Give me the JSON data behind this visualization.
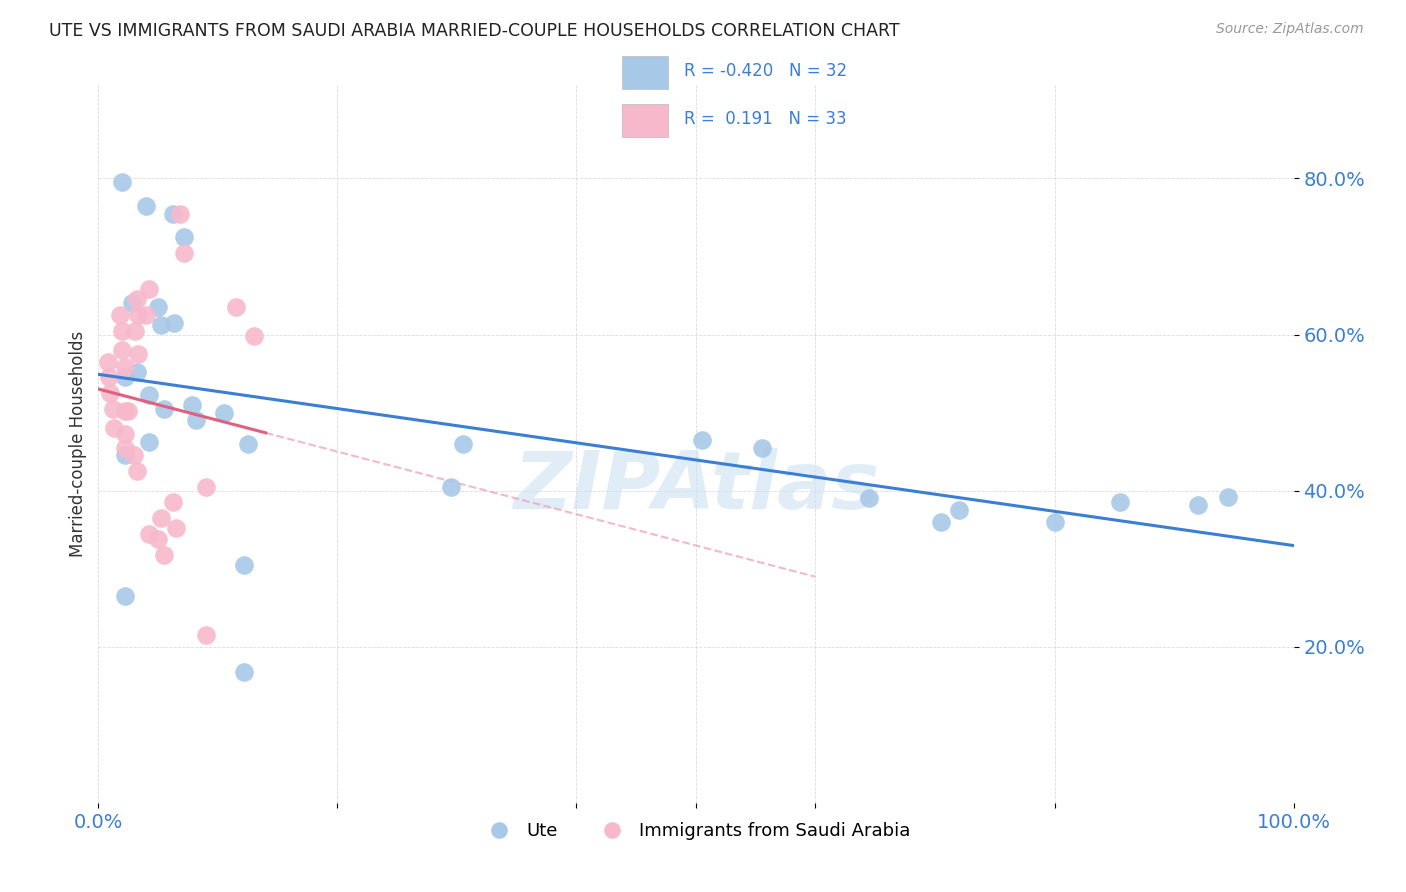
{
  "title": "UTE VS IMMIGRANTS FROM SAUDI ARABIA MARRIED-COUPLE HOUSEHOLDS CORRELATION CHART",
  "source": "Source: ZipAtlas.com",
  "ylabel": "Married-couple Households",
  "legend_R_blue": "-0.420",
  "legend_N_blue": "32",
  "legend_R_pink": " 0.191",
  "legend_N_pink": "33",
  "blue_scatter_color": "#a8c8e8",
  "pink_scatter_color": "#f8b8cc",
  "blue_line_color": "#3a7fd5",
  "pink_line_color": "#e06080",
  "pink_dash_color": "#f0a0b8",
  "watermark_color": "#c8dff0",
  "grid_color": "#d8d8d8",
  "tick_color": "#3a7fd5",
  "xlim": [
    0.0,
    1.0
  ],
  "ylim": [
    0.0,
    0.92
  ],
  "yticks": [
    0.2,
    0.4,
    0.6,
    0.8
  ],
  "ytick_labels": [
    "20.0%",
    "40.0%",
    "60.0%",
    "80.0%"
  ],
  "ute_x": [
    0.02,
    0.04,
    0.062,
    0.072,
    0.028,
    0.05,
    0.052,
    0.063,
    0.022,
    0.032,
    0.042,
    0.055,
    0.078,
    0.082,
    0.022,
    0.042,
    0.105,
    0.125,
    0.305,
    0.295,
    0.505,
    0.555,
    0.645,
    0.705,
    0.72,
    0.8,
    0.855,
    0.92,
    0.945,
    0.122,
    0.022,
    0.122
  ],
  "ute_y": [
    0.795,
    0.765,
    0.755,
    0.725,
    0.64,
    0.635,
    0.612,
    0.615,
    0.545,
    0.552,
    0.522,
    0.505,
    0.51,
    0.49,
    0.445,
    0.462,
    0.5,
    0.46,
    0.46,
    0.405,
    0.465,
    0.455,
    0.39,
    0.36,
    0.375,
    0.36,
    0.385,
    0.382,
    0.392,
    0.168,
    0.265,
    0.305
  ],
  "saudi_x": [
    0.008,
    0.009,
    0.01,
    0.012,
    0.013,
    0.018,
    0.02,
    0.02,
    0.022,
    0.022,
    0.025,
    0.022,
    0.022,
    0.032,
    0.033,
    0.031,
    0.033,
    0.03,
    0.032,
    0.042,
    0.04,
    0.042,
    0.052,
    0.05,
    0.055,
    0.062,
    0.065,
    0.072,
    0.068,
    0.09,
    0.115,
    0.13,
    0.09
  ],
  "saudi_y": [
    0.565,
    0.545,
    0.525,
    0.505,
    0.48,
    0.625,
    0.605,
    0.58,
    0.558,
    0.502,
    0.502,
    0.472,
    0.455,
    0.645,
    0.625,
    0.605,
    0.575,
    0.445,
    0.425,
    0.658,
    0.625,
    0.345,
    0.365,
    0.338,
    0.318,
    0.385,
    0.352,
    0.705,
    0.755,
    0.215,
    0.635,
    0.598,
    0.405
  ]
}
